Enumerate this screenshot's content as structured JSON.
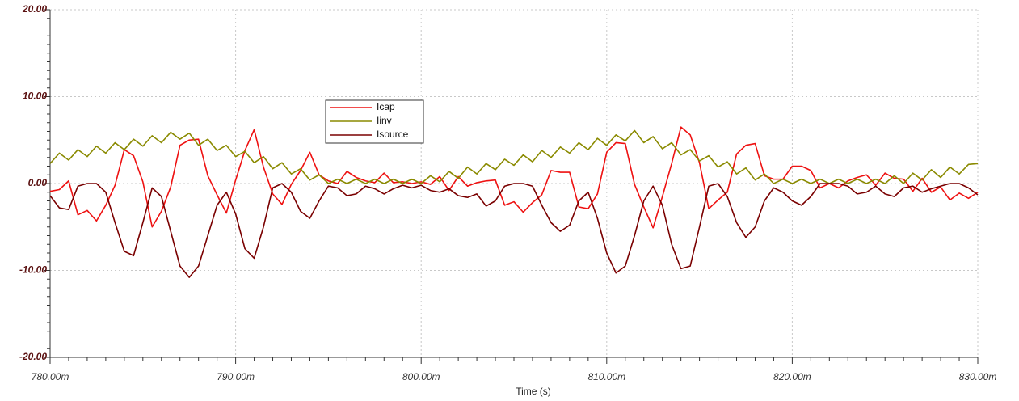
{
  "chart_data": {
    "type": "line",
    "xlabel": "Time (s)",
    "x": [
      0.78,
      0.7805,
      0.781,
      0.7815,
      0.782,
      0.7825,
      0.783,
      0.7835,
      0.784,
      0.7845,
      0.785,
      0.7855,
      0.786,
      0.7865,
      0.787,
      0.7875,
      0.788,
      0.7885,
      0.789,
      0.7895,
      0.79,
      0.7905,
      0.791,
      0.7915,
      0.792,
      0.7925,
      0.793,
      0.7935,
      0.794,
      0.7945,
      0.795,
      0.7955,
      0.796,
      0.7965,
      0.797,
      0.7975,
      0.798,
      0.7985,
      0.799,
      0.7995,
      0.8,
      0.8005,
      0.801,
      0.8015,
      0.802,
      0.8025,
      0.803,
      0.8035,
      0.804,
      0.8045,
      0.805,
      0.8055,
      0.806,
      0.8065,
      0.807,
      0.8075,
      0.808,
      0.8085,
      0.809,
      0.8095,
      0.81,
      0.8105,
      0.811,
      0.8115,
      0.812,
      0.8125,
      0.813,
      0.8135,
      0.814,
      0.8145,
      0.815,
      0.8155,
      0.816,
      0.8165,
      0.817,
      0.8175,
      0.818,
      0.8185,
      0.819,
      0.8195,
      0.82,
      0.8205,
      0.821,
      0.8215,
      0.822,
      0.8225,
      0.823,
      0.8235,
      0.824,
      0.8245,
      0.825,
      0.8255,
      0.826,
      0.8265,
      0.827,
      0.8275,
      0.828,
      0.8285,
      0.829,
      0.8295,
      0.83
    ],
    "series": [
      {
        "name": "Icap",
        "color": "#ee1111",
        "values": [
          -0.9,
          -0.7,
          0.3,
          -3.6,
          -3.1,
          -4.3,
          -2.5,
          -0.2,
          3.9,
          3.2,
          0.2,
          -5.0,
          -3.2,
          -0.4,
          4.4,
          5.0,
          5.1,
          0.9,
          -1.3,
          -3.4,
          0.4,
          3.8,
          6.2,
          1.9,
          -1.2,
          -2.4,
          -0.1,
          1.5,
          3.6,
          1.0,
          0.3,
          0,
          1.4,
          0.7,
          0.3,
          0.1,
          1.2,
          0.1,
          0.2,
          0,
          0.2,
          -0.1,
          0.8,
          -0.8,
          0.8,
          -0.3,
          0.1,
          0.3,
          0.4,
          -2.5,
          -2.1,
          -3.3,
          -2.2,
          -1.3,
          1.5,
          1.3,
          1.3,
          -2.7,
          -2.9,
          -1.2,
          3.6,
          4.7,
          4.6,
          -0.1,
          -2.7,
          -5.1,
          -1.5,
          2.3,
          6.5,
          5.6,
          2.4,
          -2.9,
          -1.9,
          -1.0,
          3.4,
          4.4,
          4.6,
          0.9,
          0.5,
          0.5,
          2.0,
          2.0,
          1.5,
          -0.5,
          0,
          -0.5,
          0.3,
          0.7,
          1.0,
          -0.2,
          1.2,
          0.6,
          0.5,
          -0.9,
          0.6,
          -1.0,
          -0.4,
          -1.9,
          -1.1,
          -1.7,
          -1.0
        ]
      },
      {
        "name": "Iinv",
        "color": "#8a8a00",
        "values": [
          2.3,
          3.5,
          2.7,
          3.9,
          3.1,
          4.3,
          3.5,
          4.7,
          3.9,
          5.1,
          4.3,
          5.5,
          4.7,
          5.9,
          5.1,
          5.8,
          4.4,
          5.1,
          3.8,
          4.4,
          3.1,
          3.7,
          2.4,
          3.1,
          1.7,
          2.4,
          1.1,
          1.7,
          0.4,
          1.0,
          0,
          0.5,
          0,
          0.5,
          0,
          0.5,
          0,
          0.5,
          0,
          0.5,
          0,
          0.9,
          0.2,
          1.4,
          0.6,
          1.9,
          1.1,
          2.3,
          1.6,
          2.8,
          2.1,
          3.3,
          2.5,
          3.8,
          3.0,
          4.2,
          3.5,
          4.7,
          3.9,
          5.2,
          4.4,
          5.6,
          4.9,
          6.1,
          4.7,
          5.4,
          4.0,
          4.7,
          3.3,
          3.9,
          2.6,
          3.2,
          1.9,
          2.5,
          1.1,
          1.8,
          0.4,
          1.1,
          0,
          0.5,
          0,
          0.5,
          0,
          0.5,
          0,
          0.5,
          0,
          0.5,
          0,
          0.5,
          0,
          0.9,
          0,
          1.2,
          0.4,
          1.6,
          0.7,
          1.9,
          1.1,
          2.2,
          2.3
        ]
      },
      {
        "name": "Isource",
        "color": "#7a0000",
        "values": [
          -1.4,
          -2.8,
          -3.0,
          -0.3,
          0,
          0,
          -1.0,
          -4.5,
          -7.8,
          -8.3,
          -4.5,
          -0.5,
          -1.5,
          -5.5,
          -9.5,
          -10.8,
          -9.5,
          -6,
          -2.5,
          -1.0,
          -3.5,
          -7.5,
          -8.6,
          -5,
          -0.5,
          0,
          -1.0,
          -3.2,
          -4.0,
          -2.0,
          -0.3,
          -0.5,
          -1.4,
          -1.2,
          -0.3,
          -0.6,
          -1.2,
          -0.6,
          -0.2,
          -0.5,
          -0.2,
          -0.8,
          -1.0,
          -0.6,
          -1.4,
          -1.6,
          -1.2,
          -2.6,
          -2.0,
          -0.3,
          0,
          0,
          -0.3,
          -2.5,
          -4.5,
          -5.5,
          -4.8,
          -2.0,
          -1.0,
          -4.0,
          -8.0,
          -10.3,
          -9.5,
          -6.0,
          -2.0,
          -0.3,
          -2.5,
          -7.0,
          -9.8,
          -9.5,
          -5.0,
          -0.3,
          0,
          -1.5,
          -4.5,
          -6.2,
          -5.0,
          -2.0,
          -0.5,
          -1.0,
          -2.0,
          -2.5,
          -1.5,
          0,
          0,
          0,
          -0.3,
          -1.2,
          -1.0,
          -0.3,
          -1.2,
          -1.5,
          -0.5,
          -0.3,
          -1.0,
          -0.6,
          -0.3,
          0,
          0,
          -0.5,
          -1.3
        ]
      }
    ],
    "xlim": [
      0.78,
      0.83
    ],
    "xticks": [
      {
        "value": 0.78,
        "label": "780.00m"
      },
      {
        "value": 0.79,
        "label": "790.00m"
      },
      {
        "value": 0.8,
        "label": "800.00m"
      },
      {
        "value": 0.81,
        "label": "810.00m"
      },
      {
        "value": 0.82,
        "label": "820.00m"
      },
      {
        "value": 0.83,
        "label": "830.00m"
      }
    ],
    "ylim": [
      -20,
      20
    ],
    "yticks": [
      {
        "value": -20,
        "label": "-20.00"
      },
      {
        "value": -10,
        "label": "-10.00"
      },
      {
        "value": 0,
        "label": "0.00"
      },
      {
        "value": 10,
        "label": "10.00"
      },
      {
        "value": 20,
        "label": "20.00"
      }
    ],
    "grid": true
  }
}
